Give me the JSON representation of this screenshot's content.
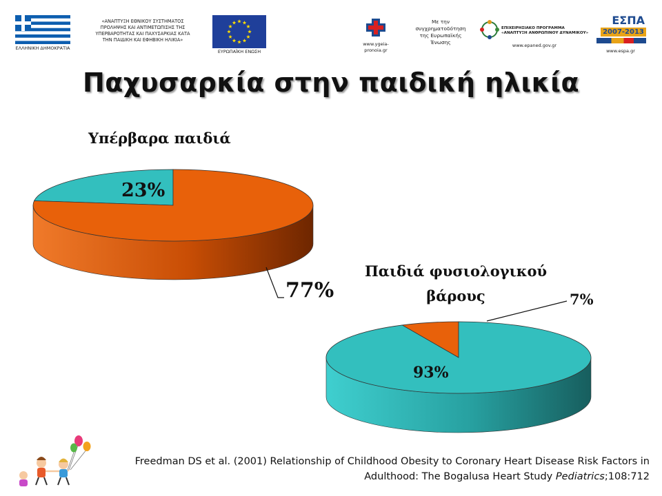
{
  "header": {
    "ministry_text": [
      "«ΑΝΑΠΤΥΞΗ ΕΘΝΙΚΟΥ ΣΥΣΤΗΜΑΤΟΣ",
      "ΠΡΟΛΗΨΗΣ ΚΑΙ ΑΝΤΙΜΕΤΩΠΙΣΗΣ ΤΗΣ",
      "ΥΠΕΡΒΑΡΟΤΗΤΑΣ ΚΑΙ ΠΑΧΥΣΑΡΚΙΑΣ ΚΑΤΑ",
      "ΤΗΝ ΠΑΙΔΙΚΗ ΚΑΙ ΕΦΗΒΙΚΗ ΗΛΙΚΙΑ»"
    ],
    "flag_caption": "ΕΛΛΗΝΙΚΗ ΔΗΜΟΚΡΑΤΙΑ",
    "eu_caption": "ΕΥΡΩΠΑΪΚΗ ΕΝΩΣΗ",
    "ygeia_url": "www.ygeia-pronoia.gr",
    "cofund_text": [
      "Με την",
      "συγχρηματοδότηση",
      "της Ευρωπαϊκής",
      "Ένωσης"
    ],
    "epaned_program": [
      "ΕΠΙΧΕΙΡΗΣΙΑΚΟ ΠΡΟΓΡΑΜΜΑ",
      "«ΑΝΑΠΤΥΞΗ ΑΝΘΡΩΠΙΝΟΥ ΔΥΝΑΜΙΚΟΥ»"
    ],
    "epaned_url": "www.epaned.gov.gr",
    "espa_title": "ΕΣΠΑ",
    "espa_years": "2007-2013",
    "espa_url": "www.espa.gr"
  },
  "title": "Παχυσαρκία στην παιδική ηλικία",
  "colors": {
    "orange": "#e8610a",
    "teal": "#33bfbe",
    "dark_orange": "#8a3200",
    "dark_teal": "#1b6b6b"
  },
  "chart_data": [
    {
      "type": "pie",
      "style": "3d",
      "title": "Υπέρβαρα παιδιά",
      "slices": [
        {
          "label": "23%",
          "value": 23,
          "color": "#33bfbe"
        },
        {
          "label": "77%",
          "value": 77,
          "color": "#e8610a"
        }
      ]
    },
    {
      "type": "pie",
      "style": "3d",
      "title": [
        "Παιδιά φυσιολογικού",
        "βάρους"
      ],
      "slices": [
        {
          "label": "7%",
          "value": 7,
          "color": "#e8610a"
        },
        {
          "label": "93%",
          "value": 93,
          "color": "#33bfbe"
        }
      ]
    }
  ],
  "citation": {
    "line1": "Freedman DS et al. (2001) Relationship of Childhood Obesity to Coronary Heart Disease Risk Factors in",
    "line2_plain": "Adulthood: The Bogalusa Heart Study ",
    "line2_italic": "Pediatrics",
    "line2_tail": ";108:712"
  }
}
